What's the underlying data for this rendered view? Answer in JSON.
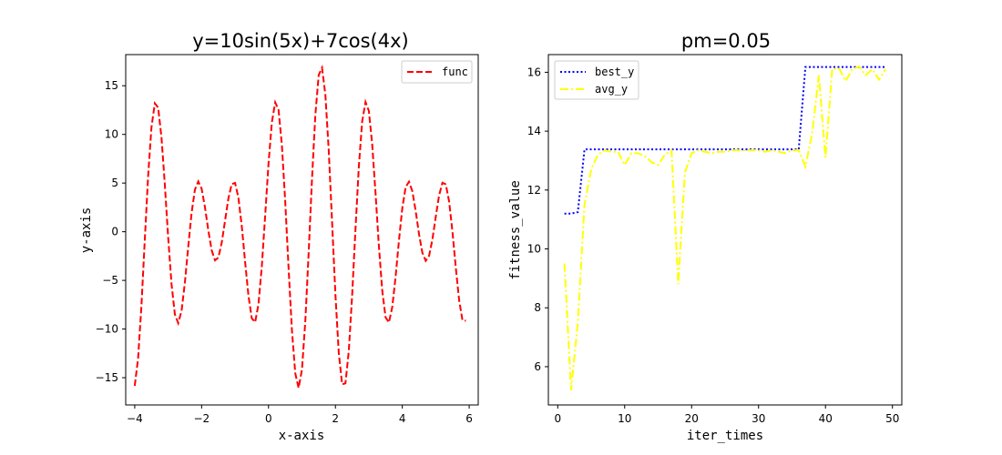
{
  "chart_data": [
    {
      "type": "line",
      "title": "y=10sin(5x)+7cos(4x)",
      "xlabel": "x-axis",
      "ylabel": "y-axis",
      "xlim": [
        -4.27,
        6.27
      ],
      "ylim": [
        -17.8,
        18.2
      ],
      "xticks": [
        -4,
        -2,
        0,
        2,
        4,
        6
      ],
      "yticks": [
        -15,
        -10,
        -5,
        0,
        5,
        10,
        15
      ],
      "xtick_labels": [
        "−4",
        "−2",
        "0",
        "2",
        "4",
        "6"
      ],
      "ytick_labels": [
        "−15",
        "−10",
        "−5",
        "0",
        "5",
        "10",
        "15"
      ],
      "grid": false,
      "legend_position": "upper-right",
      "series": [
        {
          "name": "func",
          "color": "#ff0000",
          "style": "dashed",
          "function": "10*sin(5*x)+7*cos(4*x)",
          "x_range": [
            -4,
            5.9
          ],
          "samples": 100
        }
      ]
    },
    {
      "type": "line",
      "title": "pm=0.05",
      "xlabel": "iter_times",
      "ylabel": "fitness_value",
      "xlim": [
        -1.4,
        51.4
      ],
      "ylim": [
        4.7,
        16.6
      ],
      "xticks": [
        0,
        10,
        20,
        30,
        40,
        50
      ],
      "yticks": [
        6,
        8,
        10,
        12,
        14,
        16
      ],
      "xtick_labels": [
        "0",
        "10",
        "20",
        "30",
        "40",
        "50"
      ],
      "ytick_labels": [
        "6",
        "8",
        "10",
        "12",
        "14",
        "16"
      ],
      "grid": false,
      "legend_position": "upper-left",
      "x": [
        1,
        2,
        3,
        4,
        5,
        6,
        7,
        8,
        9,
        10,
        11,
        12,
        13,
        14,
        15,
        16,
        17,
        18,
        19,
        20,
        21,
        22,
        23,
        24,
        25,
        26,
        27,
        28,
        29,
        30,
        31,
        32,
        33,
        34,
        35,
        36,
        37,
        38,
        39,
        40,
        41,
        42,
        43,
        44,
        45,
        46,
        47,
        48,
        49
      ],
      "series": [
        {
          "name": "best_y",
          "color": "#0000ff",
          "style": "dotted",
          "values": [
            11.2,
            11.2,
            11.25,
            13.38,
            13.38,
            13.38,
            13.38,
            13.38,
            13.38,
            13.38,
            13.38,
            13.38,
            13.38,
            13.38,
            13.38,
            13.38,
            13.38,
            13.38,
            13.38,
            13.38,
            13.38,
            13.38,
            13.38,
            13.38,
            13.38,
            13.38,
            13.38,
            13.38,
            13.38,
            13.38,
            13.38,
            13.38,
            13.38,
            13.38,
            13.38,
            13.38,
            16.18,
            16.18,
            16.18,
            16.18,
            16.18,
            16.18,
            16.18,
            16.18,
            16.18,
            16.18,
            16.18,
            16.18,
            16.18
          ]
        },
        {
          "name": "avg_y",
          "color": "#ffff00",
          "style": "dashdot",
          "values": [
            9.5,
            5.2,
            7.5,
            11.5,
            12.7,
            13.2,
            13.35,
            13.3,
            13.3,
            12.85,
            13.25,
            13.25,
            13.15,
            12.95,
            12.85,
            13.2,
            13.35,
            8.8,
            12.6,
            13.25,
            13.35,
            13.3,
            13.25,
            13.3,
            13.3,
            13.35,
            13.35,
            13.35,
            13.35,
            13.35,
            13.3,
            13.35,
            13.3,
            13.25,
            13.35,
            13.35,
            12.8,
            13.9,
            15.9,
            13.1,
            16.1,
            16.15,
            15.7,
            16.1,
            16.2,
            15.9,
            16.1,
            15.75,
            16.1
          ]
        }
      ]
    }
  ]
}
